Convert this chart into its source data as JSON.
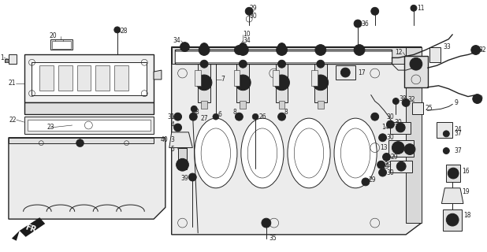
{
  "bg_color": "#ffffff",
  "line_color": "#222222",
  "fig_width": 6.18,
  "fig_height": 3.2,
  "dpi": 100,
  "fr_label": "FR.",
  "label_fontsize": 5.5
}
